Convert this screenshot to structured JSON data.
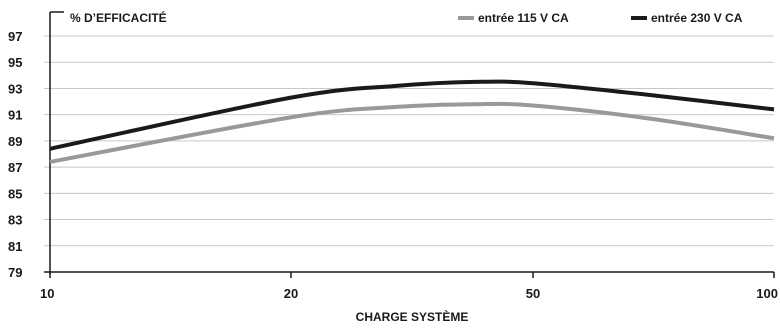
{
  "chart_data": {
    "type": "line",
    "ylabel": "% D’EFFICACITÉ",
    "xlabel": "CHARGE SYSTÈME",
    "x_ticks": [
      10,
      20,
      50,
      100
    ],
    "x_tick_labels": [
      "10",
      "20",
      "50",
      "100"
    ],
    "y_ticks": [
      79,
      81,
      83,
      85,
      87,
      89,
      91,
      93,
      95,
      97
    ],
    "y_tick_labels": [
      "79",
      "81",
      "83",
      "85",
      "87",
      "89",
      "91",
      "93",
      "95",
      "97"
    ],
    "ylim": [
      79,
      97
    ],
    "xlim": [
      10,
      100
    ],
    "grid": "horizontal",
    "legend_position": "top-right",
    "series": [
      {
        "name": "entrée 115 V CA",
        "color": "#999999",
        "x": [
          10,
          20,
          30,
          40,
          50,
          70,
          100
        ],
        "y": [
          87.4,
          90.8,
          91.6,
          91.8,
          91.7,
          90.7,
          89.2
        ]
      },
      {
        "name": "entrée 230 V CA",
        "color": "#1a1a1a",
        "x": [
          10,
          20,
          30,
          40,
          50,
          70,
          100
        ],
        "y": [
          88.4,
          92.3,
          93.2,
          93.5,
          93.4,
          92.5,
          91.4
        ]
      }
    ]
  }
}
